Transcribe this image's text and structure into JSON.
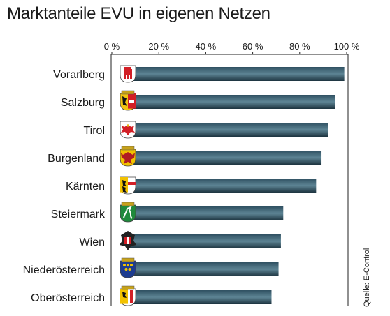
{
  "chart_data": {
    "type": "bar",
    "orientation": "horizontal",
    "title": "Marktanteile EVU in eigenen Netzen",
    "categories": [
      "Vorarlberg",
      "Salzburg",
      "Tirol",
      "Burgenland",
      "Kärnten",
      "Steiermark",
      "Wien",
      "Niederösterreich",
      "Oberösterreich"
    ],
    "values": [
      99,
      95,
      92,
      89,
      87,
      73,
      72,
      71,
      68
    ],
    "unit": "%",
    "xlim": [
      0,
      100
    ],
    "x_ticks": [
      0,
      20,
      40,
      60,
      80,
      100
    ],
    "x_tick_labels": [
      "0 %",
      "20 %",
      "40 %",
      "60 %",
      "80 %",
      "100 %"
    ],
    "tick_position": "top",
    "grid": false,
    "legend": "none",
    "source": "Quelle: E-Control",
    "bar_color": "#2b4a59",
    "icons": [
      "vorarlberg-coat-of-arms-icon",
      "salzburg-coat-of-arms-icon",
      "tirol-coat-of-arms-icon",
      "burgenland-coat-of-arms-icon",
      "kaernten-coat-of-arms-icon",
      "steiermark-coat-of-arms-icon",
      "wien-coat-of-arms-icon",
      "niederoesterreich-coat-of-arms-icon",
      "oberoesterreich-coat-of-arms-icon"
    ]
  }
}
